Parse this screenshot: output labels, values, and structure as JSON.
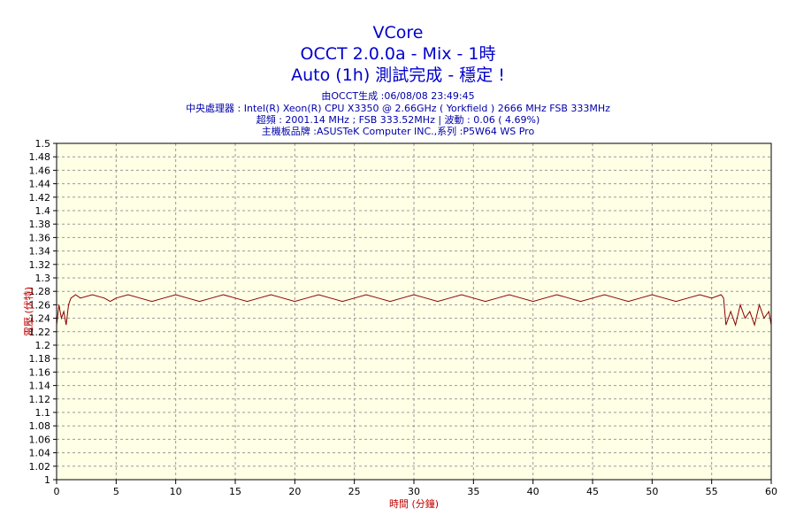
{
  "header": {
    "title": "VCore",
    "subtitle": "OCCT 2.0.0a - Mix - 1時",
    "status": "Auto (1h) 測試完成 - 穩定 !",
    "info_lines": [
      "由OCCT生成 :06/08/08 23:49:45",
      "中央處理器 : Intel(R) Xeon(R) CPU X3350 @ 2.66GHz ( Yorkfield ) 2666 MHz FSB 333MHz",
      "超頻 : 2001.14 MHz ; FSB 333.52MHz | 波動 : 0.06 ( 4.69%)",
      "主機板品牌 :ASUSTeK Computer INC.,系列 :P5W64 WS Pro"
    ]
  },
  "chart_data": {
    "type": "line",
    "xlabel": "時間 (分鐘)",
    "ylabel": "電壓 (伏特)",
    "xlim": [
      0,
      60
    ],
    "ylim": [
      1,
      1.5
    ],
    "x_ticks": [
      0,
      5,
      10,
      15,
      20,
      25,
      30,
      35,
      40,
      45,
      50,
      55,
      60
    ],
    "y_ticks": [
      1,
      1.02,
      1.04,
      1.06,
      1.08,
      1.1,
      1.12,
      1.14,
      1.16,
      1.18,
      1.2,
      1.22,
      1.24,
      1.26,
      1.28,
      1.3,
      1.32,
      1.34,
      1.36,
      1.38,
      1.4,
      1.42,
      1.44,
      1.46,
      1.48,
      1.5
    ],
    "grid": true,
    "series": [
      {
        "values": [
          [
            0.0,
            1.23
          ],
          [
            0.2,
            1.26
          ],
          [
            0.4,
            1.24
          ],
          [
            0.6,
            1.25
          ],
          [
            0.8,
            1.23
          ],
          [
            1.0,
            1.26
          ],
          [
            1.2,
            1.27
          ],
          [
            1.6,
            1.275
          ],
          [
            2.0,
            1.27
          ],
          [
            3.0,
            1.275
          ],
          [
            4.0,
            1.27
          ],
          [
            4.5,
            1.265
          ],
          [
            5.0,
            1.27
          ],
          [
            6.0,
            1.275
          ],
          [
            7.0,
            1.27
          ],
          [
            8.0,
            1.265
          ],
          [
            9.0,
            1.27
          ],
          [
            10.0,
            1.275
          ],
          [
            11.0,
            1.27
          ],
          [
            12.0,
            1.265
          ],
          [
            13.0,
            1.27
          ],
          [
            14.0,
            1.275
          ],
          [
            15.0,
            1.27
          ],
          [
            16.0,
            1.265
          ],
          [
            17.0,
            1.27
          ],
          [
            18.0,
            1.275
          ],
          [
            19.0,
            1.27
          ],
          [
            20.0,
            1.265
          ],
          [
            21.0,
            1.27
          ],
          [
            22.0,
            1.275
          ],
          [
            23.0,
            1.27
          ],
          [
            24.0,
            1.265
          ],
          [
            25.0,
            1.27
          ],
          [
            26.0,
            1.275
          ],
          [
            27.0,
            1.27
          ],
          [
            28.0,
            1.265
          ],
          [
            29.0,
            1.27
          ],
          [
            30.0,
            1.275
          ],
          [
            31.0,
            1.27
          ],
          [
            32.0,
            1.265
          ],
          [
            33.0,
            1.27
          ],
          [
            34.0,
            1.275
          ],
          [
            35.0,
            1.27
          ],
          [
            36.0,
            1.265
          ],
          [
            37.0,
            1.27
          ],
          [
            38.0,
            1.275
          ],
          [
            39.0,
            1.27
          ],
          [
            40.0,
            1.265
          ],
          [
            41.0,
            1.27
          ],
          [
            42.0,
            1.275
          ],
          [
            43.0,
            1.27
          ],
          [
            44.0,
            1.265
          ],
          [
            45.0,
            1.27
          ],
          [
            46.0,
            1.275
          ],
          [
            47.0,
            1.27
          ],
          [
            48.0,
            1.265
          ],
          [
            49.0,
            1.27
          ],
          [
            50.0,
            1.275
          ],
          [
            51.0,
            1.27
          ],
          [
            52.0,
            1.265
          ],
          [
            53.0,
            1.27
          ],
          [
            54.0,
            1.275
          ],
          [
            55.0,
            1.27
          ],
          [
            55.8,
            1.275
          ],
          [
            56.0,
            1.27
          ],
          [
            56.2,
            1.23
          ],
          [
            56.6,
            1.25
          ],
          [
            57.0,
            1.23
          ],
          [
            57.4,
            1.26
          ],
          [
            57.8,
            1.24
          ],
          [
            58.2,
            1.25
          ],
          [
            58.6,
            1.23
          ],
          [
            59.0,
            1.26
          ],
          [
            59.4,
            1.24
          ],
          [
            59.8,
            1.25
          ],
          [
            60.0,
            1.23
          ]
        ]
      }
    ]
  },
  "colors": {
    "title": "#0000cc",
    "info": "#0000aa",
    "plot_bg": "#ffffe6",
    "grid": "#9a9a9a",
    "line": "#8b0000",
    "axis_label": "#c00000"
  }
}
